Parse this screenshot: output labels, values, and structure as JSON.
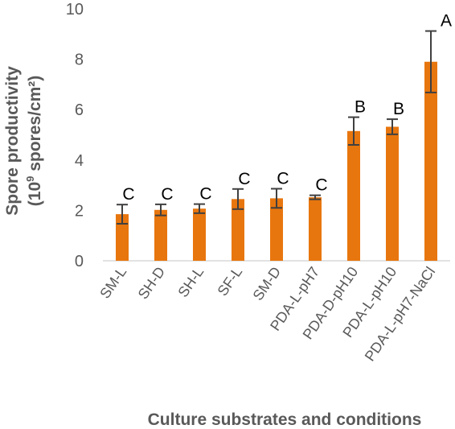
{
  "chart_data": {
    "type": "bar",
    "xlabel": "Culture substrates and conditions",
    "ylabel_line1": "Spore productivity",
    "ylabel_line2_prefix": "(10",
    "ylabel_line2_sup": "9",
    "ylabel_line2_suffix": " spores/cm²)",
    "ylim": [
      0,
      10
    ],
    "yticks": [
      "0",
      "2",
      "4",
      "6",
      "8",
      "10"
    ],
    "categories": [
      "SM-L",
      "SH-D",
      "SH-L",
      "SF-L",
      "SM-D",
      "PDA-L-pH7",
      "PDA-D-pH10",
      "PDA-L-pH10",
      "PDA-L-pH7-NaCl"
    ],
    "values": [
      1.85,
      2.02,
      2.07,
      2.45,
      2.48,
      2.52,
      5.15,
      5.32,
      7.9
    ],
    "errors": [
      0.38,
      0.22,
      0.18,
      0.4,
      0.38,
      0.08,
      0.55,
      0.3,
      1.22
    ],
    "significance": [
      "C",
      "C",
      "C",
      "C",
      "C",
      "C",
      "B",
      "B",
      "A"
    ],
    "bar_color": "#E8760E",
    "error_color": "#404040",
    "grid": false,
    "legend": "none"
  }
}
